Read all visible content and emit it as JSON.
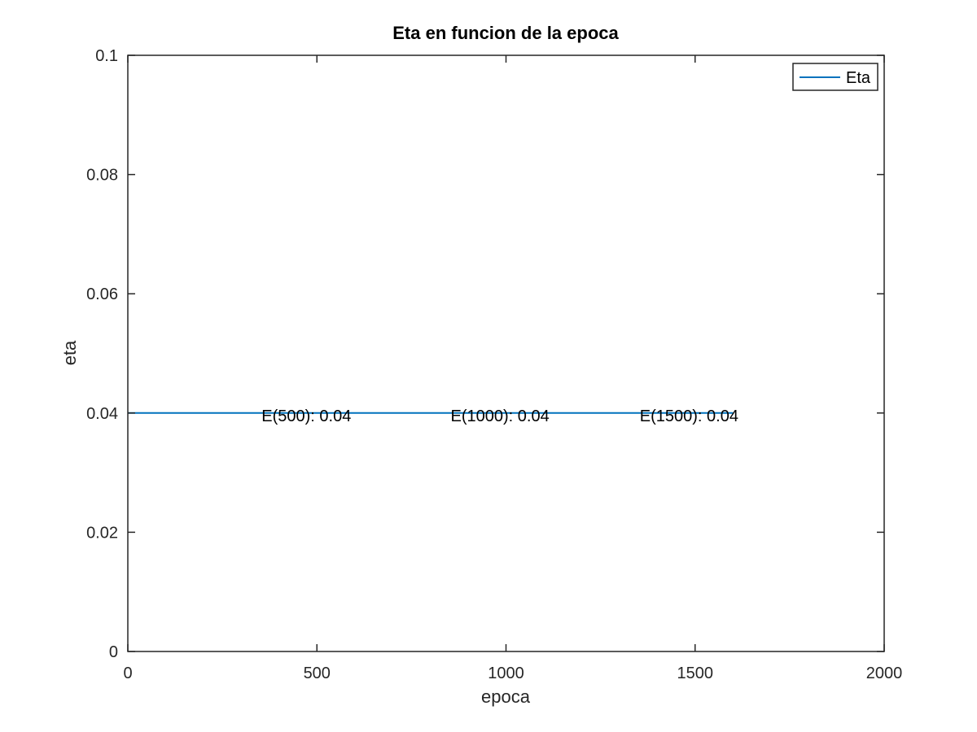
{
  "chart_data": {
    "type": "line",
    "title": "Eta en funcion de la epoca",
    "xlabel": "epoca",
    "ylabel": "eta",
    "xlim": [
      0,
      2000
    ],
    "ylim": [
      0,
      0.1
    ],
    "xticks": [
      0,
      500,
      1000,
      1500,
      2000
    ],
    "xtick_labels": [
      "0",
      "500",
      "1000",
      "1500",
      "2000"
    ],
    "yticks": [
      0,
      0.02,
      0.04,
      0.06,
      0.08,
      0.1
    ],
    "ytick_labels": [
      "0",
      "0.02",
      "0.04",
      "0.06",
      "0.08",
      "0.1"
    ],
    "grid": false,
    "legend_position": "top-right",
    "series": [
      {
        "name": "Eta",
        "color": "#0072BD",
        "x": [
          0,
          1600
        ],
        "y": [
          0.04,
          0.04
        ]
      }
    ],
    "annotations": [
      {
        "text": "E(500): 0.04",
        "x": 500,
        "y": 0.04
      },
      {
        "text": "E(1000): 0.04",
        "x": 1000,
        "y": 0.04
      },
      {
        "text": "E(1500): 0.04",
        "x": 1500,
        "y": 0.04
      }
    ]
  }
}
